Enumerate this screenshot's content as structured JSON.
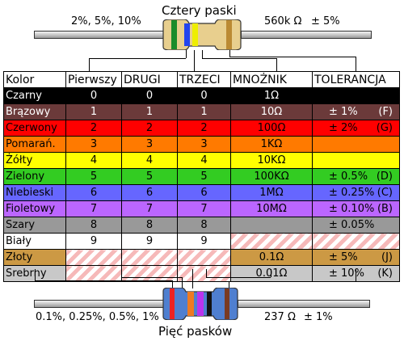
{
  "four_band": {
    "title": "Cztery paski",
    "left_label": "2%, 5%, 10%",
    "value_label": "560k Ω",
    "tolerance_label": "± 5%",
    "bands": [
      "#1a8c2a",
      "#2244ee",
      "#eeee00",
      "#bb8a33"
    ]
  },
  "five_band": {
    "title": "Pięć pasków",
    "left_label": "0.1%, 0.25%, 0.5%, 1%",
    "value_label": "237 Ω",
    "tolerance_label": "± 1%",
    "bands": [
      "#ee2222",
      "#ee7a22",
      "#bb33ee",
      "#111111",
      "#7a3a22"
    ]
  },
  "table": {
    "headers": [
      "Kolor",
      "Pierwszy",
      "DRUGI",
      "TRZECI",
      "MNOŻNIK",
      "TOLERANCJA"
    ],
    "rows": [
      {
        "color": "Czarny",
        "bg": "#000000",
        "fg": "#ffffff",
        "first": "0",
        "second": "0",
        "third": "0",
        "multiplier": "1Ω",
        "tolerance": "",
        "code": ""
      },
      {
        "color": "Brązowy",
        "bg": "#6b3a3a",
        "fg": "#ffffff",
        "first": "1",
        "second": "1",
        "third": "1",
        "multiplier": "10Ω",
        "tolerance": "± 1%",
        "code": "(F)"
      },
      {
        "color": "Czerwony",
        "bg": "#ff0000",
        "fg": "#000000",
        "first": "2",
        "second": "2",
        "third": "2",
        "multiplier": "100Ω",
        "tolerance": "± 2%",
        "code": "(G)"
      },
      {
        "color": "Pomarań.",
        "bg": "#ff7a00",
        "fg": "#000000",
        "first": "3",
        "second": "3",
        "third": "3",
        "multiplier": "1KΩ",
        "tolerance": "",
        "code": ""
      },
      {
        "color": "Żółty",
        "bg": "#ffff00",
        "fg": "#000000",
        "first": "4",
        "second": "4",
        "third": "4",
        "multiplier": "10KΩ",
        "tolerance": "",
        "code": ""
      },
      {
        "color": "Zielony",
        "bg": "#33cc22",
        "fg": "#000000",
        "first": "5",
        "second": "5",
        "third": "5",
        "multiplier": "100KΩ",
        "tolerance": "± 0.5%",
        "code": "(D)"
      },
      {
        "color": "Niebieski",
        "bg": "#6666ff",
        "fg": "#000000",
        "first": "6",
        "second": "6",
        "third": "6",
        "multiplier": "1MΩ",
        "tolerance": "± 0.25%",
        "code": "(C)"
      },
      {
        "color": "Fioletowy",
        "bg": "#bb66ff",
        "fg": "#000000",
        "first": "7",
        "second": "7",
        "third": "7",
        "multiplier": "10MΩ",
        "tolerance": "± 0.10%",
        "code": "(B)"
      },
      {
        "color": "Szary",
        "bg": "#999999",
        "fg": "#000000",
        "first": "8",
        "second": "8",
        "third": "8",
        "multiplier": "",
        "tolerance": "± 0.05%",
        "code": ""
      },
      {
        "color": "Biały",
        "bg": "#ffffff",
        "fg": "#000000",
        "first": "9",
        "second": "9",
        "third": "9",
        "multiplier": "",
        "tolerance": "",
        "code": ""
      },
      {
        "color": "Złoty",
        "bg": "#cc9944",
        "fg": "#000000",
        "first": "",
        "second": "",
        "third": "",
        "multiplier": "0.1Ω",
        "tolerance": "± 5%",
        "code": "(J)"
      },
      {
        "color": "Srebrny",
        "bg": "#c8c8c8",
        "fg": "#000000",
        "first": "",
        "second": "",
        "third": "",
        "multiplier": "0.01Ω",
        "tolerance": "± 10%",
        "code": "(K)"
      }
    ]
  }
}
